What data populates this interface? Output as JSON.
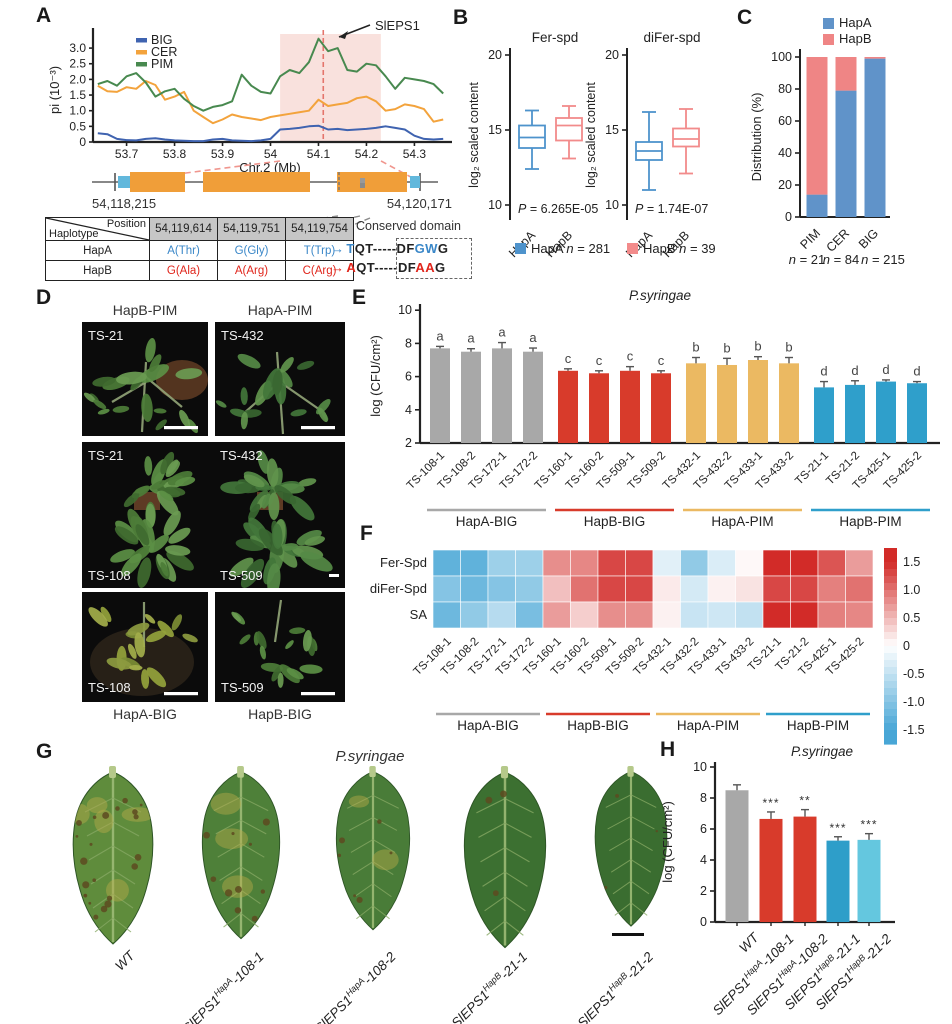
{
  "panels": {
    "a": "A",
    "b": "B",
    "c": "C",
    "d": "D",
    "e": "E",
    "f": "F",
    "g": "G",
    "h": "H"
  },
  "panelA": {
    "gene": {
      "start_label": "54,118,215",
      "end_label": "54,120,171"
    },
    "table": {
      "corner_top": "Position",
      "corner_bottom": "Haplotype",
      "positions": [
        "54,119,614",
        "54,119,751",
        "54,119,754"
      ],
      "conserved_header": "Conserved domain",
      "rows": [
        {
          "name": "HapA",
          "color": "#3A87C8",
          "arrow": "→",
          "alleles": [
            "A(Thr)",
            "G(Gly)",
            "T(Trp)"
          ],
          "seq": [
            {
              "t": "T",
              "c": "#3A87C8"
            },
            {
              "t": "QT-----DF",
              "c": "#222222"
            },
            {
              "t": "GW",
              "c": "#3A87C8"
            },
            {
              "t": "G",
              "c": "#222222"
            }
          ]
        },
        {
          "name": "HapB",
          "color": "#E0251B",
          "arrow": "→",
          "alleles": [
            "G(Ala)",
            "A(Arg)",
            "C(Arg)"
          ],
          "seq": [
            {
              "t": "A",
              "c": "#E0251B"
            },
            {
              "t": "QT-----DF",
              "c": "#222222"
            },
            {
              "t": "AA",
              "c": "#E0251B"
            },
            {
              "t": "G",
              "c": "#222222"
            }
          ]
        }
      ]
    }
  },
  "panelB": {
    "legend": [
      {
        "swatch": "#4E93CC",
        "label": "HapA",
        "n_italic": "n",
        "n_rest": " = 281"
      },
      {
        "swatch": "#F28B8B",
        "label": "HapB",
        "n_italic": "n",
        "n_rest": " = 39"
      }
    ]
  },
  "panelC": {
    "legend": [
      {
        "swatch": "#6093C9",
        "label": "HapA"
      },
      {
        "swatch": "#EF8585",
        "label": "HapB"
      }
    ],
    "n_labels": [
      {
        "n_italic": "n",
        "n_rest": " = 21"
      },
      {
        "n_italic": "n",
        "n_rest": " = 84"
      },
      {
        "n_italic": "n",
        "n_rest": " = 215"
      }
    ]
  },
  "panelD": {
    "header_left": "HapB-PIM",
    "header_right": "HapA-PIM",
    "caption_left": "HapA-BIG",
    "caption_right": "HapB-BIG",
    "photo_labels": {
      "p1": "TS-21",
      "p2": "TS-432",
      "quad": [
        "TS-21",
        "TS-432",
        "TS-108",
        "TS-509"
      ],
      "p4": "TS-108",
      "p5": "TS-509"
    }
  },
  "panelG": {
    "title": "P.syringae",
    "leaves": [
      {
        "label": {
          "pre": "WT"
        },
        "fill": "#5f8c3c",
        "spots": 26,
        "patches": 5,
        "scale": 1.0
      },
      {
        "label": {
          "pre": "SlEPS1",
          "sup": "HapA",
          "post": "-108-1"
        },
        "fill": "#4e8039",
        "spots": 14,
        "patches": 3,
        "scale": 0.97
      },
      {
        "label": {
          "pre": "SlEPS1",
          "sup": "HapA",
          "post": "-108-2"
        },
        "fill": "#497c38",
        "spots": 9,
        "patches": 2,
        "scale": 0.92
      },
      {
        "label": {
          "pre": "SlEPS1",
          "sup": "HapB",
          "post": "-21-1"
        },
        "fill": "#3c7031",
        "spots": 3,
        "patches": 0,
        "scale": 1.02
      },
      {
        "label": {
          "pre": "SlEPS1",
          "sup": "HapB",
          "post": "-21-2"
        },
        "fill": "#3a6d30",
        "spots": 3,
        "patches": 0,
        "scale": 0.9
      }
    ]
  },
  "chart_data": [
    {
      "id": "pi_diversity",
      "type": "line",
      "title": "",
      "xlabel": "Chr.2 (Mb)",
      "ylabel": "pi (10⁻³)",
      "xticks": [
        53.7,
        53.8,
        53.9,
        54,
        54.1,
        54.2,
        54.3
      ],
      "xtick_labels": [
        "53.7",
        "53.8",
        "53.9",
        "54",
        "54.1",
        "54.2",
        "54.3"
      ],
      "yticks": [
        0,
        0.5,
        1,
        1.5,
        2,
        2.5,
        3
      ],
      "ytick_labels": [
        "0",
        "0.5",
        "1.0",
        "1.5",
        "2.0",
        "2.5",
        "3.0"
      ],
      "xlim": [
        53.63,
        54.37
      ],
      "ylim": [
        0,
        3.45
      ],
      "x0": 53.64,
      "dx": 0.02,
      "shaded_region": [
        54.02,
        54.23
      ],
      "marker_x": 54.11,
      "marker_label": "SlEPS1",
      "series": [
        {
          "name": "BIG",
          "color": "#3F63B0",
          "values": [
            0.28,
            0.25,
            0.1,
            0.06,
            0.05,
            0.1,
            0.12,
            0.08,
            0.05,
            0.04,
            0.03,
            0.03,
            0.08,
            0.1,
            0.05,
            0.04,
            0.03,
            0.05,
            0.1,
            0.4,
            0.42,
            0.45,
            0.5,
            0.52,
            0.4,
            0.42,
            0.38,
            0.4,
            0.42,
            0.45,
            0.5,
            0.45,
            0.4,
            0.2,
            0.1,
            0.08,
            0.1
          ]
        },
        {
          "name": "CER",
          "color": "#F3A33C",
          "values": [
            1.8,
            1.62,
            1.6,
            1.75,
            1.7,
            1.95,
            1.82,
            1.35,
            1.45,
            1.6,
            1.0,
            0.8,
            0.6,
            0.72,
            0.88,
            0.8,
            0.75,
            0.7,
            0.8,
            0.85,
            0.9,
            0.95,
            1.0,
            1.35,
            1.15,
            1.2,
            1.25,
            1.4,
            1.45,
            1.3,
            1.0,
            1.05,
            1.2,
            1.15,
            1.05,
            0.65,
            0.72
          ]
        },
        {
          "name": "PIM",
          "color": "#48894F",
          "values": [
            1.85,
            1.95,
            1.8,
            2.1,
            2.2,
            1.9,
            1.45,
            1.62,
            1.7,
            1.38,
            1.15,
            1.0,
            1.12,
            1.18,
            1.3,
            2.15,
            1.8,
            1.6,
            1.55,
            2.1,
            2.3,
            2.2,
            2.55,
            3.3,
            2.9,
            3.0,
            2.3,
            2.25,
            2.5,
            2.45,
            2.1,
            1.7,
            2.05,
            2.0,
            1.95,
            1.85,
            1.55
          ]
        }
      ]
    },
    {
      "id": "fer_spd",
      "type": "box",
      "title": "Fer-spd",
      "ylabel": "log₂ scaled content",
      "yticks": [
        10,
        15,
        20
      ],
      "ylim": [
        9.5,
        20.5
      ],
      "p_italic": "P",
      "p_rest": " = 6.265E-05",
      "categories": [
        "HapA",
        "HapB"
      ],
      "boxes": [
        {
          "label": "HapA",
          "color": "#4E93CC",
          "whisker_low": 12.4,
          "q1": 13.8,
          "median": 14.5,
          "q3": 15.3,
          "whisker_high": 16.3
        },
        {
          "label": "HapB",
          "color": "#F28B8B",
          "whisker_low": 13.1,
          "q1": 14.3,
          "median": 15.3,
          "q3": 15.8,
          "whisker_high": 16.6
        }
      ]
    },
    {
      "id": "difer_spd",
      "type": "box",
      "title": "diFer-spd",
      "ylabel": "log₂ scaled content",
      "yticks": [
        10,
        15,
        20
      ],
      "ylim": [
        9.5,
        20.5
      ],
      "p_italic": "P",
      "p_rest": " = 1.74E-07",
      "categories": [
        "HapA",
        "HapB"
      ],
      "boxes": [
        {
          "label": "HapA",
          "color": "#4E93CC",
          "whisker_low": 11.0,
          "q1": 13.0,
          "median": 13.6,
          "q3": 14.2,
          "whisker_high": 16.2
        },
        {
          "label": "HapB",
          "color": "#F28B8B",
          "whisker_low": 12.1,
          "q1": 13.9,
          "median": 14.4,
          "q3": 15.1,
          "whisker_high": 16.4
        }
      ]
    },
    {
      "id": "distribution",
      "type": "stacked_bar",
      "ylabel": "Distribution (%)",
      "yticks": [
        0,
        20,
        40,
        60,
        80,
        100
      ],
      "ylim": [
        0,
        100
      ],
      "categories": [
        "PIM",
        "CER",
        "BIG"
      ],
      "series": [
        {
          "name": "HapA",
          "color": "#6093C9",
          "values": [
            14,
            79,
            99
          ]
        },
        {
          "name": "HapB",
          "color": "#EF8585",
          "values": [
            86,
            21,
            1
          ]
        }
      ]
    },
    {
      "id": "psyringae_lines",
      "type": "bar",
      "title": "P.syringae",
      "ylabel": "log (CFU/cm²)",
      "yticks": [
        2,
        4,
        6,
        8,
        10
      ],
      "ylim": [
        2,
        10
      ],
      "categories": [
        "TS-108-1",
        "TS-108-2",
        "TS-172-1",
        "TS-172-2",
        "TS-160-1",
        "TS-160-2",
        "TS-509-1",
        "TS-509-2",
        "TS-432-1",
        "TS-432-2",
        "TS-433-1",
        "TS-433-2",
        "TS-21-1",
        "TS-21-2",
        "TS-425-1",
        "TS-425-2"
      ],
      "values": [
        7.7,
        7.5,
        7.7,
        7.5,
        6.35,
        6.2,
        6.35,
        6.2,
        6.8,
        6.7,
        7.0,
        6.8,
        5.35,
        5.5,
        5.7,
        5.6
      ],
      "errors": [
        0.12,
        0.18,
        0.35,
        0.22,
        0.12,
        0.15,
        0.25,
        0.15,
        0.35,
        0.4,
        0.2,
        0.35,
        0.35,
        0.25,
        0.1,
        0.1
      ],
      "letters": [
        "a",
        "a",
        "a",
        "a",
        "c",
        "c",
        "c",
        "c",
        "b",
        "b",
        "b",
        "b",
        "d",
        "d",
        "d",
        "d"
      ],
      "groups": [
        {
          "name": "HapA-BIG",
          "color": "#A8A8A8"
        },
        {
          "name": "HapB-BIG",
          "color": "#D83B2B"
        },
        {
          "name": "HapA-PIM",
          "color": "#EBB962"
        },
        {
          "name": "HapB-PIM",
          "color": "#2F9FCB"
        }
      ]
    },
    {
      "id": "hormone_heatmap",
      "type": "heatmap",
      "rows": [
        "Fer-Spd",
        "diFer-Spd",
        "SA"
      ],
      "columns": [
        "TS-108-1",
        "TS-108-2",
        "TS-172-1",
        "TS-172-2",
        "TS-160-1",
        "TS-160-2",
        "TS-509-1",
        "TS-509-2",
        "TS-432-1",
        "TS-432-2",
        "TS-433-1",
        "TS-433-2",
        "TS-21-1",
        "TS-21-2",
        "TS-425-1",
        "TS-425-2"
      ],
      "values": [
        [
          -1.3,
          -1.3,
          -0.8,
          -0.8,
          0.8,
          0.85,
          1.3,
          1.3,
          -0.25,
          -0.9,
          -0.3,
          0.05,
          1.5,
          1.5,
          1.2,
          0.7
        ],
        [
          -1.0,
          -1.2,
          -1.0,
          -0.9,
          0.45,
          1.0,
          1.3,
          1.3,
          0.15,
          -0.35,
          0.1,
          0.2,
          1.3,
          1.3,
          0.9,
          1.0
        ],
        [
          -1.2,
          -0.9,
          -0.6,
          -1.1,
          0.7,
          0.35,
          0.8,
          0.8,
          0.1,
          -0.45,
          -0.4,
          -0.5,
          1.5,
          1.5,
          0.9,
          0.85
        ]
      ],
      "scale": {
        "min": -1.5,
        "max": 1.5,
        "ticks": [
          "1.5",
          "1.0",
          "0.5",
          "0",
          "-0.5",
          "-1.0",
          "-1.5"
        ]
      },
      "groups": [
        {
          "name": "HapA-BIG",
          "color": "#A8A8A8"
        },
        {
          "name": "HapB-BIG",
          "color": "#D83B2B"
        },
        {
          "name": "HapA-PIM",
          "color": "#EBB962"
        },
        {
          "name": "HapB-PIM",
          "color": "#2F9FCB"
        }
      ]
    },
    {
      "id": "psyringae_ko",
      "type": "bar",
      "title": "P.syringae",
      "ylabel": "log (CFU/cm²)",
      "yticks": [
        0,
        2,
        4,
        6,
        8,
        10
      ],
      "ylim": [
        0,
        10
      ],
      "categories": [
        {
          "pre": "WT"
        },
        {
          "pre": "SlEPS1",
          "sup": "HapA",
          "post": "-108-1"
        },
        {
          "pre": "SlEPS1",
          "sup": "HapA",
          "post": "-108-2"
        },
        {
          "pre": "SlEPS1",
          "sup": "HapB",
          "post": "-21-1"
        },
        {
          "pre": "SlEPS1",
          "sup": "HapB",
          "post": "-21-2"
        }
      ],
      "values": [
        8.5,
        6.65,
        6.8,
        5.25,
        5.3
      ],
      "errors": [
        0.35,
        0.45,
        0.45,
        0.25,
        0.4
      ],
      "sig": [
        "",
        "***",
        "**",
        "***",
        "***"
      ],
      "colors": [
        "#A8A8A8",
        "#D83B2B",
        "#D83B2B",
        "#2E9EC9",
        "#64C7DF"
      ]
    }
  ]
}
